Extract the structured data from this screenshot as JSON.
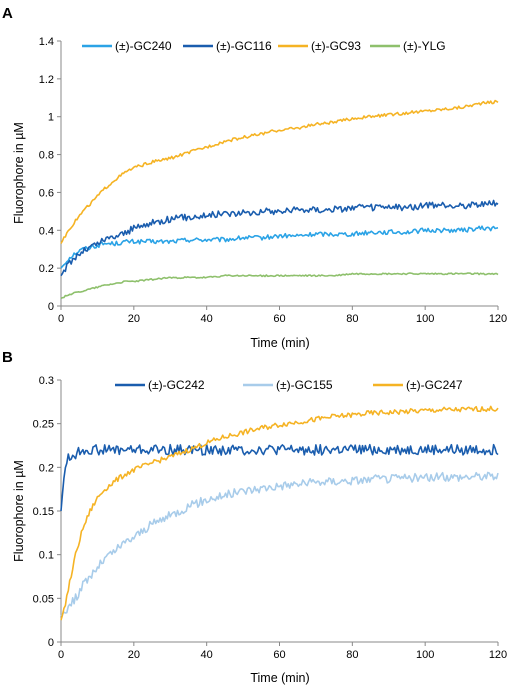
{
  "chart_data": [
    {
      "type": "line",
      "panel_label": "A",
      "xlabel": "Time (min)",
      "ylabel": "Fluorophore in µM",
      "xlim": [
        0,
        120
      ],
      "ylim": [
        0,
        1.4
      ],
      "x_ticks": [
        "0",
        "20",
        "40",
        "60",
        "80",
        "100",
        "120"
      ],
      "y_ticks": [
        "0",
        "0.2",
        "0.4",
        "0.6",
        "0.8",
        "1",
        "1.2",
        "1.4"
      ],
      "grid": false,
      "legend": "top",
      "x": [
        0,
        2,
        4,
        6,
        8,
        10,
        12,
        15,
        18,
        20,
        25,
        30,
        35,
        40,
        45,
        50,
        55,
        60,
        65,
        70,
        75,
        80,
        85,
        90,
        95,
        100,
        105,
        110,
        115,
        120
      ],
      "series": [
        {
          "name": "(±)-GC240",
          "color": "#2BA3E6",
          "values": [
            0.2,
            0.25,
            0.28,
            0.3,
            0.31,
            0.32,
            0.33,
            0.33,
            0.34,
            0.34,
            0.34,
            0.34,
            0.35,
            0.35,
            0.35,
            0.36,
            0.36,
            0.37,
            0.37,
            0.38,
            0.38,
            0.38,
            0.39,
            0.39,
            0.39,
            0.4,
            0.4,
            0.4,
            0.41,
            0.41
          ]
        },
        {
          "name": "(±)-GC116",
          "color": "#1A5DAE",
          "values": [
            0.16,
            0.22,
            0.26,
            0.29,
            0.31,
            0.33,
            0.35,
            0.37,
            0.39,
            0.41,
            0.44,
            0.46,
            0.47,
            0.48,
            0.49,
            0.49,
            0.5,
            0.5,
            0.51,
            0.51,
            0.51,
            0.52,
            0.52,
            0.52,
            0.52,
            0.53,
            0.53,
            0.53,
            0.54,
            0.54
          ]
        },
        {
          "name": "(±)-GC93",
          "color": "#F5B324",
          "values": [
            0.33,
            0.4,
            0.45,
            0.5,
            0.54,
            0.58,
            0.62,
            0.67,
            0.71,
            0.73,
            0.76,
            0.78,
            0.81,
            0.84,
            0.87,
            0.89,
            0.91,
            0.93,
            0.94,
            0.96,
            0.97,
            0.99,
            1.0,
            1.01,
            1.02,
            1.03,
            1.04,
            1.05,
            1.07,
            1.08
          ]
        },
        {
          "name": "(±)-YLG",
          "color": "#8EC06C",
          "values": [
            0.04,
            0.06,
            0.07,
            0.08,
            0.09,
            0.1,
            0.11,
            0.12,
            0.13,
            0.13,
            0.14,
            0.15,
            0.15,
            0.15,
            0.16,
            0.16,
            0.16,
            0.16,
            0.16,
            0.16,
            0.16,
            0.17,
            0.17,
            0.17,
            0.17,
            0.17,
            0.17,
            0.17,
            0.17,
            0.17
          ]
        }
      ]
    },
    {
      "type": "line",
      "panel_label": "B",
      "xlabel": "Time (min)",
      "ylabel": "Fluorophore in µM",
      "xlim": [
        0,
        120
      ],
      "ylim": [
        0,
        0.3
      ],
      "x_ticks": [
        "0",
        "20",
        "40",
        "60",
        "80",
        "100",
        "120"
      ],
      "y_ticks": [
        "0",
        "0.05",
        "0.1",
        "0.15",
        "0.2",
        "0.25",
        "0.3"
      ],
      "grid": false,
      "legend": "top",
      "x": [
        0,
        1,
        2,
        4,
        6,
        8,
        10,
        12,
        15,
        18,
        20,
        25,
        30,
        35,
        40,
        45,
        50,
        55,
        60,
        65,
        70,
        75,
        80,
        85,
        90,
        95,
        100,
        105,
        110,
        115,
        120
      ],
      "series": [
        {
          "name": "(±)-GC242",
          "color": "#1A5DAE",
          "values": [
            0.15,
            0.2,
            0.21,
            0.215,
            0.22,
            0.22,
            0.22,
            0.22,
            0.22,
            0.22,
            0.22,
            0.22,
            0.22,
            0.22,
            0.22,
            0.22,
            0.22,
            0.22,
            0.22,
            0.22,
            0.22,
            0.22,
            0.22,
            0.22,
            0.22,
            0.22,
            0.22,
            0.22,
            0.22,
            0.22,
            0.22
          ]
        },
        {
          "name": "(±)-GC155",
          "color": "#A8CCEA",
          "values": [
            0.03,
            0.035,
            0.04,
            0.05,
            0.065,
            0.075,
            0.085,
            0.095,
            0.105,
            0.115,
            0.12,
            0.135,
            0.145,
            0.155,
            0.163,
            0.168,
            0.173,
            0.176,
            0.179,
            0.181,
            0.183,
            0.184,
            0.185,
            0.186,
            0.187,
            0.188,
            0.188,
            0.189,
            0.189,
            0.19,
            0.19
          ]
        },
        {
          "name": "(±)-GC247",
          "color": "#F5B324",
          "values": [
            0.025,
            0.04,
            0.06,
            0.1,
            0.13,
            0.15,
            0.165,
            0.175,
            0.185,
            0.193,
            0.197,
            0.205,
            0.212,
            0.22,
            0.228,
            0.235,
            0.24,
            0.245,
            0.249,
            0.252,
            0.255,
            0.258,
            0.26,
            0.262,
            0.263,
            0.264,
            0.265,
            0.266,
            0.266,
            0.267,
            0.267
          ]
        }
      ]
    }
  ]
}
